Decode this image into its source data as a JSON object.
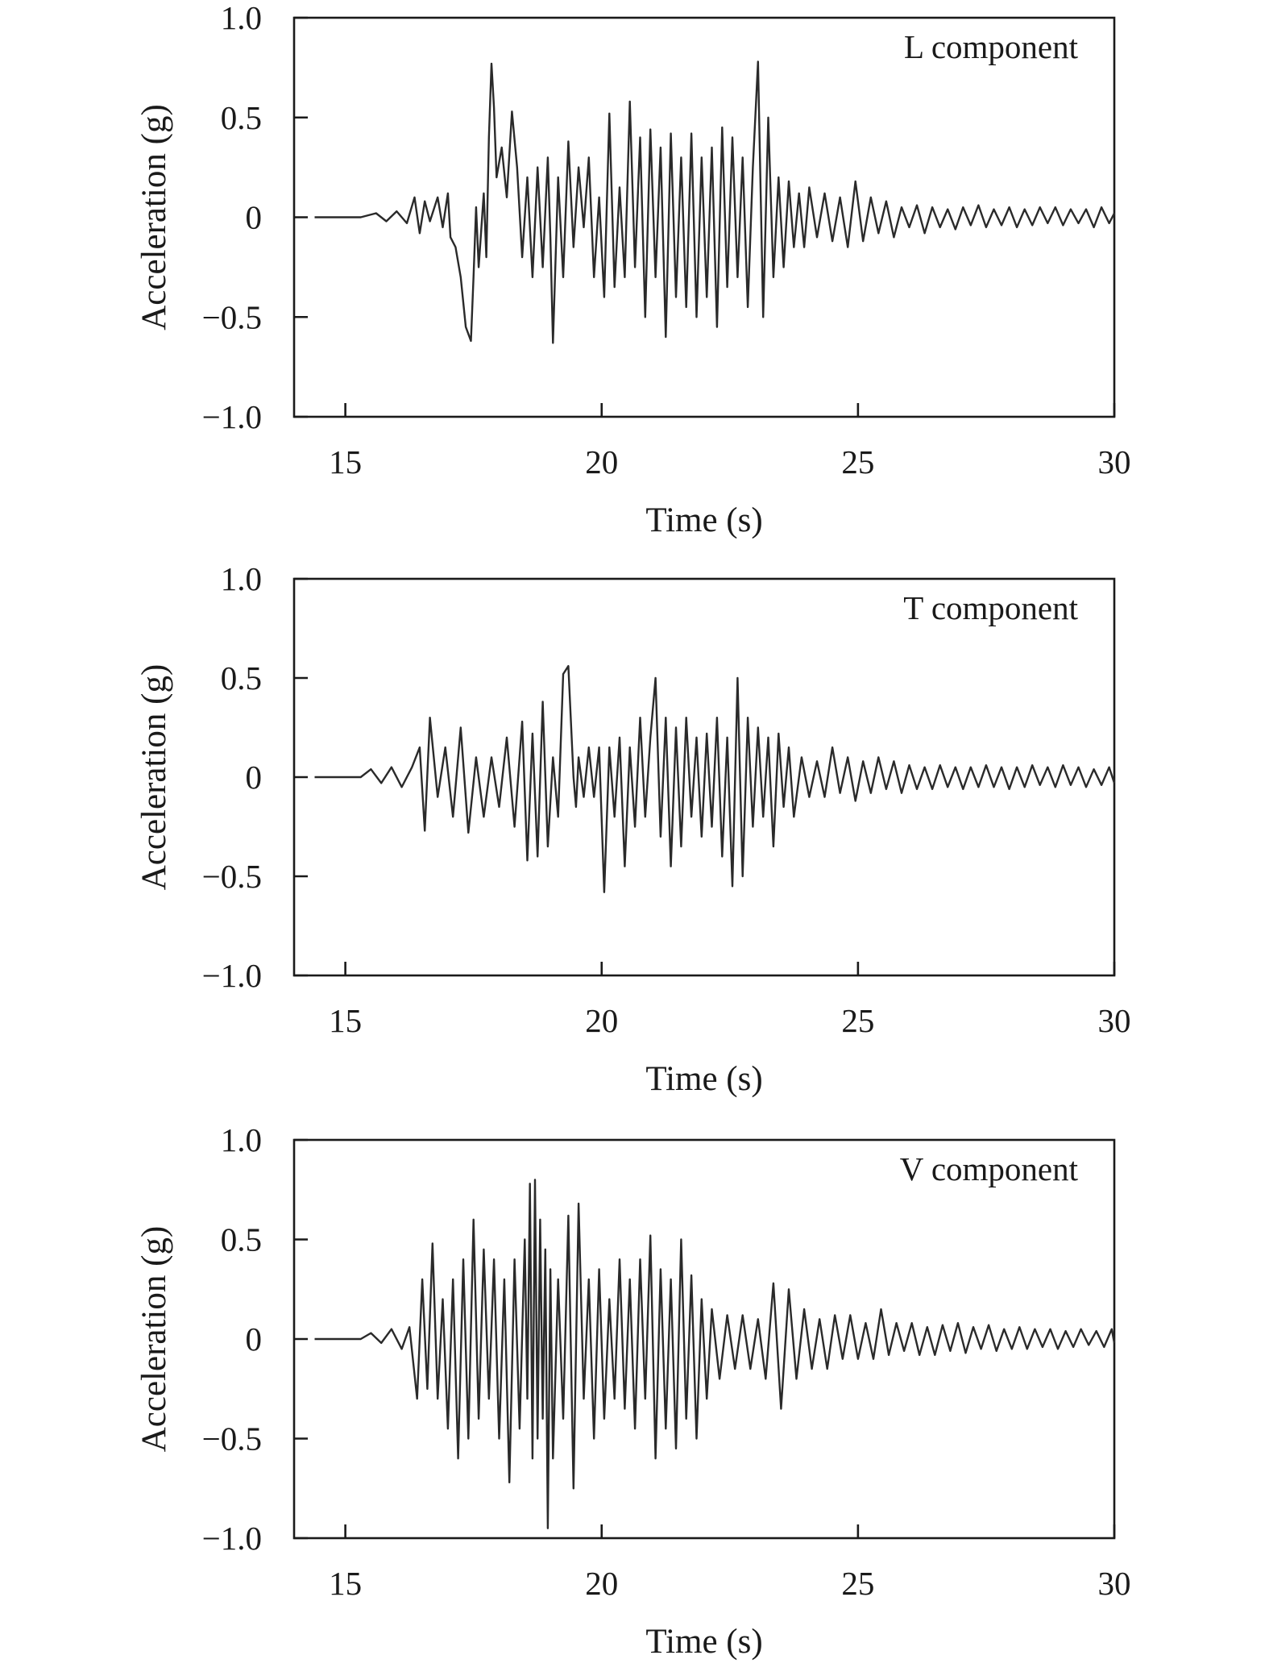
{
  "chart_data": [
    {
      "type": "line",
      "label": "L component",
      "xlabel": "Time (s)",
      "ylabel": "Acceleration (g)",
      "xlim": [
        14,
        30
      ],
      "ylim": [
        -1.0,
        1.0
      ],
      "xticks": [
        15,
        20,
        25,
        30
      ],
      "yticks": [
        1.0,
        0.5,
        0,
        -0.5,
        -1.0
      ],
      "ytick_labels": [
        "1.0",
        "0.5",
        "0",
        "−0.5",
        "−1.0"
      ],
      "xtick_labels": [
        "15",
        "20",
        "25",
        "30"
      ],
      "grid": false,
      "series": [
        {
          "x": [
            14.4,
            15.3,
            15.6,
            15.8,
            16.0,
            16.2,
            16.35,
            16.45,
            16.55,
            16.65,
            16.8,
            16.9,
            17.0,
            17.05,
            17.15,
            17.25,
            17.35,
            17.45,
            17.5,
            17.55,
            17.6,
            17.7,
            17.75,
            17.8,
            17.85,
            17.9,
            17.95,
            18.05,
            18.15,
            18.25,
            18.35,
            18.45,
            18.55,
            18.65,
            18.75,
            18.85,
            18.95,
            19.0,
            19.05,
            19.15,
            19.25,
            19.35,
            19.45,
            19.55,
            19.65,
            19.75,
            19.85,
            19.95,
            20.05,
            20.15,
            20.25,
            20.35,
            20.45,
            20.55,
            20.65,
            20.75,
            20.85,
            20.95,
            21.05,
            21.15,
            21.25,
            21.35,
            21.45,
            21.55,
            21.65,
            21.75,
            21.85,
            21.95,
            22.05,
            22.15,
            22.25,
            22.35,
            22.45,
            22.55,
            22.65,
            22.75,
            22.85,
            22.95,
            23.05,
            23.15,
            23.25,
            23.35,
            23.45,
            23.55,
            23.65,
            23.75,
            23.85,
            23.95,
            24.05,
            24.2,
            24.35,
            24.5,
            24.65,
            24.8,
            24.95,
            25.1,
            25.25,
            25.4,
            25.55,
            25.7,
            25.85,
            26.0,
            26.15,
            26.3,
            26.45,
            26.6,
            26.75,
            26.9,
            27.05,
            27.2,
            27.35,
            27.5,
            27.65,
            27.8,
            27.95,
            28.1,
            28.25,
            28.4,
            28.55,
            28.7,
            28.85,
            29.0,
            29.15,
            29.3,
            29.45,
            29.6,
            29.75,
            29.9,
            30.0
          ],
          "y": [
            0.0,
            0.0,
            0.02,
            -0.02,
            0.03,
            -0.03,
            0.1,
            -0.08,
            0.08,
            -0.02,
            0.1,
            -0.05,
            0.12,
            -0.1,
            -0.15,
            -0.3,
            -0.55,
            -0.62,
            -0.3,
            0.05,
            -0.25,
            0.12,
            -0.2,
            0.4,
            0.77,
            0.55,
            0.2,
            0.35,
            0.1,
            0.53,
            0.25,
            -0.2,
            0.2,
            -0.3,
            0.25,
            -0.25,
            0.3,
            -0.1,
            -0.63,
            0.2,
            -0.3,
            0.38,
            -0.15,
            0.25,
            -0.05,
            0.3,
            -0.3,
            0.1,
            -0.4,
            0.52,
            -0.35,
            0.15,
            -0.3,
            0.58,
            -0.25,
            0.4,
            -0.5,
            0.44,
            -0.3,
            0.35,
            -0.6,
            0.42,
            -0.4,
            0.3,
            -0.45,
            0.42,
            -0.5,
            0.3,
            -0.4,
            0.35,
            -0.55,
            0.45,
            -0.35,
            0.4,
            -0.3,
            0.3,
            -0.45,
            0.25,
            0.78,
            -0.5,
            0.5,
            -0.3,
            0.2,
            -0.25,
            0.18,
            -0.15,
            0.12,
            -0.15,
            0.15,
            -0.1,
            0.12,
            -0.12,
            0.1,
            -0.15,
            0.18,
            -0.12,
            0.1,
            -0.08,
            0.08,
            -0.1,
            0.05,
            -0.05,
            0.06,
            -0.08,
            0.05,
            -0.05,
            0.04,
            -0.06,
            0.05,
            -0.04,
            0.06,
            -0.05,
            0.04,
            -0.04,
            0.05,
            -0.05,
            0.04,
            -0.04,
            0.05,
            -0.03,
            0.05,
            -0.04,
            0.04,
            -0.03,
            0.04,
            -0.05,
            0.05,
            -0.03,
            0.02
          ]
        }
      ]
    },
    {
      "type": "line",
      "label": "T component",
      "xlabel": "Time (s)",
      "ylabel": "Acceleration (g)",
      "xlim": [
        14,
        30
      ],
      "ylim": [
        -1.0,
        1.0
      ],
      "xticks": [
        15,
        20,
        25,
        30
      ],
      "yticks": [
        1.0,
        0.5,
        0,
        -0.5,
        -1.0
      ],
      "ytick_labels": [
        "1.0",
        "0.5",
        "0",
        "−0.5",
        "−1.0"
      ],
      "xtick_labels": [
        "15",
        "20",
        "25",
        "30"
      ],
      "grid": false,
      "series": [
        {
          "x": [
            14.4,
            15.3,
            15.5,
            15.7,
            15.9,
            16.1,
            16.3,
            16.45,
            16.55,
            16.65,
            16.8,
            16.95,
            17.1,
            17.25,
            17.4,
            17.55,
            17.7,
            17.85,
            18.0,
            18.15,
            18.3,
            18.45,
            18.55,
            18.65,
            18.75,
            18.85,
            18.95,
            19.05,
            19.15,
            19.25,
            19.35,
            19.45,
            19.5,
            19.55,
            19.65,
            19.75,
            19.85,
            19.95,
            20.05,
            20.15,
            20.25,
            20.35,
            20.45,
            20.55,
            20.65,
            20.75,
            20.85,
            20.95,
            21.05,
            21.15,
            21.25,
            21.35,
            21.45,
            21.55,
            21.65,
            21.75,
            21.85,
            21.95,
            22.05,
            22.15,
            22.25,
            22.35,
            22.45,
            22.55,
            22.65,
            22.75,
            22.85,
            22.95,
            23.05,
            23.15,
            23.25,
            23.35,
            23.45,
            23.55,
            23.65,
            23.75,
            23.9,
            24.05,
            24.2,
            24.35,
            24.5,
            24.65,
            24.8,
            24.95,
            25.1,
            25.25,
            25.4,
            25.55,
            25.7,
            25.85,
            26.0,
            26.15,
            26.3,
            26.45,
            26.6,
            26.75,
            26.9,
            27.05,
            27.2,
            27.35,
            27.5,
            27.65,
            27.8,
            27.95,
            28.1,
            28.25,
            28.4,
            28.55,
            28.7,
            28.85,
            29.0,
            29.15,
            29.3,
            29.45,
            29.6,
            29.75,
            29.9,
            30.0
          ],
          "y": [
            0.0,
            0.0,
            0.04,
            -0.03,
            0.05,
            -0.05,
            0.05,
            0.15,
            -0.27,
            0.3,
            -0.1,
            0.15,
            -0.2,
            0.25,
            -0.28,
            0.1,
            -0.2,
            0.1,
            -0.15,
            0.2,
            -0.25,
            0.28,
            -0.42,
            0.22,
            -0.4,
            0.38,
            -0.35,
            0.1,
            -0.2,
            0.52,
            0.56,
            0.0,
            -0.15,
            0.1,
            -0.1,
            0.15,
            -0.1,
            0.15,
            -0.58,
            0.15,
            -0.2,
            0.2,
            -0.45,
            0.15,
            -0.25,
            0.3,
            -0.2,
            0.2,
            0.5,
            -0.3,
            0.3,
            -0.45,
            0.25,
            -0.35,
            0.3,
            -0.2,
            0.2,
            -0.3,
            0.22,
            -0.25,
            0.3,
            -0.4,
            0.2,
            -0.55,
            0.5,
            -0.5,
            0.3,
            -0.25,
            0.25,
            -0.2,
            0.2,
            -0.35,
            0.22,
            -0.15,
            0.15,
            -0.2,
            0.1,
            -0.1,
            0.08,
            -0.1,
            0.15,
            -0.08,
            0.1,
            -0.12,
            0.08,
            -0.08,
            0.1,
            -0.06,
            0.08,
            -0.08,
            0.06,
            -0.06,
            0.05,
            -0.06,
            0.06,
            -0.05,
            0.05,
            -0.06,
            0.05,
            -0.05,
            0.06,
            -0.05,
            0.05,
            -0.06,
            0.05,
            -0.05,
            0.06,
            -0.04,
            0.05,
            -0.05,
            0.06,
            -0.04,
            0.05,
            -0.05,
            0.04,
            -0.04,
            0.05,
            -0.03
          ]
        }
      ]
    },
    {
      "type": "line",
      "label": "V component",
      "xlabel": "Time (s)",
      "ylabel": "Acceleration (g)",
      "xlim": [
        14,
        30
      ],
      "ylim": [
        -1.0,
        1.0
      ],
      "xticks": [
        15,
        20,
        25,
        30
      ],
      "yticks": [
        1.0,
        0.5,
        0,
        -0.5,
        -1.0
      ],
      "ytick_labels": [
        "1.0",
        "0.5",
        "0",
        "−0.5",
        "−1.0"
      ],
      "xtick_labels": [
        "15",
        "20",
        "25",
        "30"
      ],
      "grid": false,
      "series": [
        {
          "x": [
            14.4,
            15.3,
            15.5,
            15.7,
            15.9,
            16.1,
            16.25,
            16.4,
            16.5,
            16.6,
            16.7,
            16.8,
            16.9,
            17.0,
            17.1,
            17.2,
            17.3,
            17.4,
            17.5,
            17.6,
            17.7,
            17.8,
            17.9,
            18.0,
            18.1,
            18.2,
            18.3,
            18.4,
            18.5,
            18.55,
            18.6,
            18.65,
            18.7,
            18.75,
            18.8,
            18.85,
            18.9,
            18.95,
            19.0,
            19.05,
            19.15,
            19.25,
            19.35,
            19.45,
            19.55,
            19.65,
            19.75,
            19.85,
            19.95,
            20.05,
            20.15,
            20.25,
            20.35,
            20.45,
            20.55,
            20.65,
            20.75,
            20.85,
            20.95,
            21.05,
            21.15,
            21.25,
            21.35,
            21.45,
            21.55,
            21.65,
            21.75,
            21.85,
            21.95,
            22.05,
            22.15,
            22.3,
            22.45,
            22.6,
            22.75,
            22.9,
            23.05,
            23.2,
            23.35,
            23.5,
            23.65,
            23.8,
            23.95,
            24.1,
            24.25,
            24.4,
            24.55,
            24.7,
            24.85,
            25.0,
            25.15,
            25.3,
            25.45,
            25.6,
            25.75,
            25.9,
            26.05,
            26.2,
            26.35,
            26.5,
            26.65,
            26.8,
            26.95,
            27.1,
            27.25,
            27.4,
            27.55,
            27.7,
            27.85,
            28.0,
            28.15,
            28.3,
            28.45,
            28.6,
            28.75,
            28.9,
            29.05,
            29.2,
            29.35,
            29.5,
            29.65,
            29.8,
            29.95,
            30.0
          ],
          "y": [
            0.0,
            0.0,
            0.03,
            -0.02,
            0.05,
            -0.05,
            0.06,
            -0.3,
            0.3,
            -0.25,
            0.48,
            -0.3,
            0.2,
            -0.45,
            0.3,
            -0.6,
            0.4,
            -0.5,
            0.6,
            -0.4,
            0.45,
            -0.3,
            0.4,
            -0.5,
            0.3,
            -0.72,
            0.4,
            -0.45,
            0.5,
            -0.3,
            0.78,
            -0.6,
            0.8,
            -0.5,
            0.6,
            -0.4,
            0.45,
            -0.95,
            0.35,
            -0.6,
            0.3,
            -0.4,
            0.62,
            -0.75,
            0.68,
            -0.3,
            0.3,
            -0.5,
            0.35,
            -0.4,
            0.2,
            -0.3,
            0.4,
            -0.35,
            0.3,
            -0.45,
            0.4,
            -0.3,
            0.52,
            -0.6,
            0.35,
            -0.45,
            0.3,
            -0.55,
            0.5,
            -0.4,
            0.32,
            -0.5,
            0.2,
            -0.3,
            0.15,
            -0.2,
            0.12,
            -0.15,
            0.12,
            -0.15,
            0.1,
            -0.2,
            0.28,
            -0.35,
            0.25,
            -0.2,
            0.15,
            -0.15,
            0.1,
            -0.15,
            0.12,
            -0.1,
            0.12,
            -0.1,
            0.08,
            -0.1,
            0.15,
            -0.08,
            0.08,
            -0.06,
            0.08,
            -0.08,
            0.06,
            -0.08,
            0.07,
            -0.06,
            0.08,
            -0.07,
            0.06,
            -0.05,
            0.07,
            -0.06,
            0.05,
            -0.05,
            0.06,
            -0.05,
            0.05,
            -0.04,
            0.05,
            -0.05,
            0.04,
            -0.04,
            0.05,
            -0.03,
            0.04,
            -0.04,
            0.05,
            -0.02
          ]
        }
      ]
    }
  ]
}
